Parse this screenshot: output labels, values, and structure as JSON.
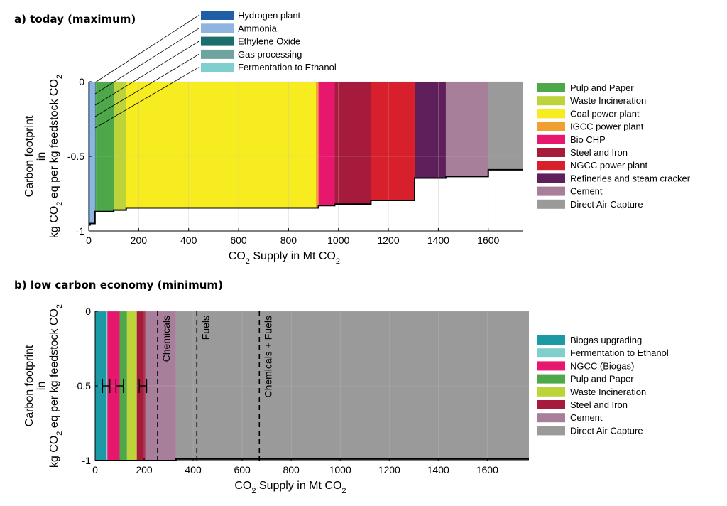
{
  "chart_data": [
    {
      "type": "area",
      "title": "a) today (maximum)",
      "xlabel": "CO2 Supply in Mt CO2",
      "ylabel": "Carbon footprint in kg CO2 eq per kg feedstock CO2",
      "ylabel_lines": [
        "Carbon footprint",
        "in",
        "kg CO",
        "2",
        " eq per kg feedstock CO",
        "2"
      ],
      "xlabel_parts": [
        "CO",
        "2",
        " Supply in Mt CO",
        "2"
      ],
      "xlim": [
        0,
        1740
      ],
      "ylim": [
        -1,
        0
      ],
      "xticks": [
        0,
        200,
        400,
        600,
        800,
        1000,
        1200,
        1400,
        1600
      ],
      "xtick_labels": [
        "0",
        "200",
        "400",
        "600",
        "800",
        "1000",
        "1200",
        "1400",
        "1600"
      ],
      "yticks": [
        0,
        -0.5,
        -1
      ],
      "ytick_labels": [
        "0",
        "-0.5",
        "-1"
      ],
      "grid": true,
      "legend_position": "right",
      "sources": [
        {
          "name": "Hydrogen plant",
          "color": "#1f5fa8",
          "x0": 0,
          "x1": 5,
          "y": -0.96
        },
        {
          "name": "Ammonia",
          "color": "#8fb4e0",
          "x0": 5,
          "x1": 25,
          "y": -0.95
        },
        {
          "name": "Ethylene Oxide",
          "color": "#1b6e6b",
          "x0": 25,
          "x1": 27,
          "y": -0.87
        },
        {
          "name": "Gas processing",
          "color": "#6fa3a0",
          "x0": 27,
          "x1": 28,
          "y": -0.87
        },
        {
          "name": "Fermentation to Ethanol",
          "color": "#7fcfcf",
          "x0": 28,
          "x1": 29,
          "y": -0.87
        },
        {
          "name": "Pulp and Paper",
          "color": "#4ea84a",
          "x0": 29,
          "x1": 100,
          "y": -0.87
        },
        {
          "name": "Waste Incineration",
          "color": "#bcd43a",
          "x0": 100,
          "x1": 150,
          "y": -0.86
        },
        {
          "name": "Coal power plant",
          "color": "#f7ec1f",
          "x0": 150,
          "x1": 910,
          "y": -0.845
        },
        {
          "name": "IGCC power plant",
          "color": "#f0a030",
          "x0": 910,
          "x1": 920,
          "y": -0.845
        },
        {
          "name": "Bio CHP",
          "color": "#e8176e",
          "x0": 920,
          "x1": 985,
          "y": -0.83
        },
        {
          "name": "Steel and Iron",
          "color": "#a61b3c",
          "x0": 985,
          "x1": 1130,
          "y": -0.82
        },
        {
          "name": "NGCC power plant",
          "color": "#d7202c",
          "x0": 1130,
          "x1": 1305,
          "y": -0.795
        },
        {
          "name": "Refineries and steam cracker",
          "color": "#5e1f5b",
          "x0": 1305,
          "x1": 1430,
          "y": -0.645
        },
        {
          "name": "Cement",
          "color": "#a77f9b",
          "x0": 1430,
          "x1": 1600,
          "y": -0.635
        },
        {
          "name": "Direct Air Capture",
          "color": "#9a9a9a",
          "x0": 1600,
          "x1": 1740,
          "y": -0.59
        }
      ],
      "legend_top": [
        "Hydrogen plant",
        "Ammonia",
        "Ethylene Oxide",
        "Gas processing",
        "Fermentation to Ethanol"
      ],
      "legend_right": [
        "Pulp and Paper",
        "Waste Incineration",
        "Coal power plant",
        "IGCC power plant",
        "Bio CHP",
        "Steel and Iron",
        "NGCC power plant",
        "Refineries and steam cracker",
        "Cement",
        "Direct Air Capture"
      ]
    },
    {
      "type": "area",
      "title": "b) low carbon economy (minimum)",
      "xlabel": "CO2 Supply in Mt CO2",
      "ylabel": "Carbon footprint in kg CO2 eq per kg feedstock CO2",
      "ylabel_lines": [
        "Carbon footprint",
        "in",
        "kg CO",
        "2",
        " eq per kg feedstock CO",
        "2"
      ],
      "xlabel_parts": [
        "CO",
        "2",
        " Supply in Mt CO",
        "2"
      ],
      "xlim": [
        0,
        1770
      ],
      "ylim": [
        -1,
        0
      ],
      "xticks": [
        0,
        200,
        400,
        600,
        800,
        1000,
        1200,
        1400,
        1600
      ],
      "xtick_labels": [
        "0",
        "200",
        "400",
        "600",
        "800",
        "1000",
        "1200",
        "1400",
        "1600"
      ],
      "yticks": [
        0,
        -0.5,
        -1
      ],
      "ytick_labels": [
        "0",
        "-0.5",
        "-1"
      ],
      "grid": true,
      "legend_position": "right",
      "sources": [
        {
          "name": "Biogas upgrading",
          "color": "#1b9aa6",
          "x0": 0,
          "x1": 45,
          "y": -1.0
        },
        {
          "name": "Fermentation to Ethanol",
          "color": "#7fcfcf",
          "x0": 45,
          "x1": 50,
          "y": -1.0
        },
        {
          "name": "NGCC (Biogas)",
          "color": "#e8176e",
          "x0": 50,
          "x1": 100,
          "y": -1.0
        },
        {
          "name": "Pulp and Paper",
          "color": "#4ea84a",
          "x0": 100,
          "x1": 130,
          "y": -1.0
        },
        {
          "name": "Waste Incineration",
          "color": "#bcd43a",
          "x0": 130,
          "x1": 170,
          "y": -1.0
        },
        {
          "name": "Steel and Iron",
          "color": "#a61b3c",
          "x0": 170,
          "x1": 205,
          "y": -1.0
        },
        {
          "name": "Cement",
          "color": "#a77f9b",
          "x0": 205,
          "x1": 330,
          "y": -1.0
        },
        {
          "name": "Direct Air Capture",
          "color": "#9a9a9a",
          "x0": 330,
          "x1": 1770,
          "y": -0.99
        }
      ],
      "error_bars": [
        {
          "x": 45,
          "y": -0.5,
          "low": 30,
          "high": 60
        },
        {
          "x": 100,
          "y": -0.5,
          "low": 85,
          "high": 115
        },
        {
          "x": 195,
          "y": -0.5,
          "low": 180,
          "high": 210
        }
      ],
      "markers": [
        {
          "label": "Chemicals",
          "x": 255
        },
        {
          "label": "Fuels",
          "x": 415
        },
        {
          "label": "Chemicals + Fuels",
          "x": 670
        }
      ],
      "legend_right": [
        "Biogas upgrading",
        "Fermentation to Ethanol",
        "NGCC (Biogas)",
        "Pulp and Paper",
        "Waste Incineration",
        "Steel and Iron",
        "Cement",
        "Direct Air Capture"
      ]
    }
  ]
}
